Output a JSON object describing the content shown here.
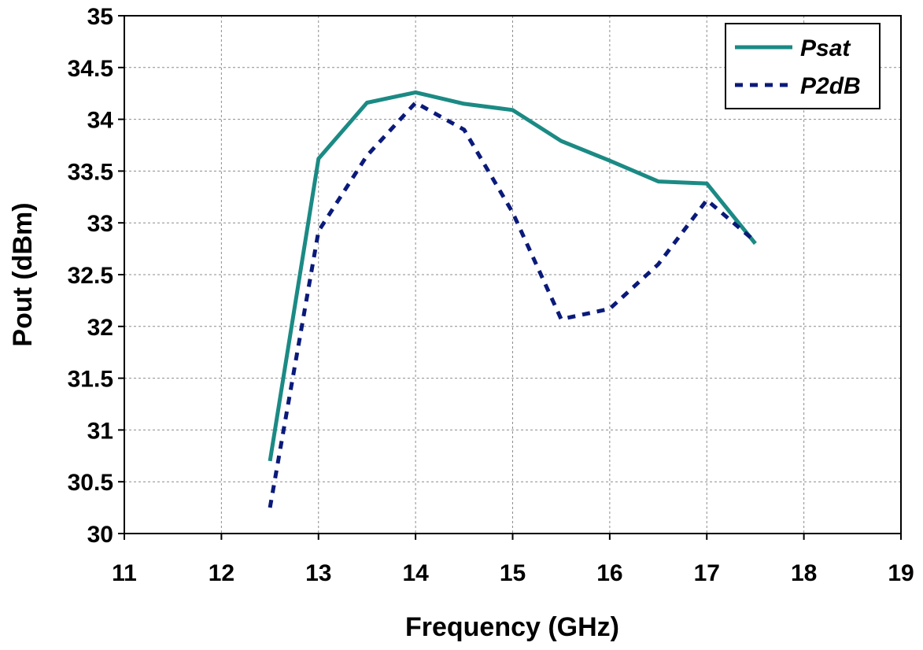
{
  "chart_data": {
    "type": "line",
    "title": "",
    "xlabel": "Frequency (GHz)",
    "ylabel": "Pout (dBm)",
    "xlim": [
      11,
      19
    ],
    "ylim": [
      30,
      35
    ],
    "xticks": [
      "11",
      "12",
      "13",
      "14",
      "15",
      "16",
      "17",
      "18",
      "19"
    ],
    "yticks": [
      "30",
      "30.5",
      "31",
      "31.5",
      "32",
      "32.5",
      "33",
      "33.5",
      "34",
      "34.5",
      "35"
    ],
    "grid": true,
    "legend_position": "top-right",
    "series": [
      {
        "name": "Psat",
        "color": "#1b8a84",
        "style": "solid",
        "x": [
          12.5,
          13,
          13.5,
          14,
          14.5,
          15,
          15.5,
          16,
          16.5,
          17,
          17.5
        ],
        "y": [
          30.7,
          33.62,
          34.16,
          34.26,
          34.15,
          34.09,
          33.79,
          33.6,
          33.4,
          33.38,
          32.8
        ]
      },
      {
        "name": "P2dB",
        "color": "#0a1a7a",
        "style": "dashed",
        "x": [
          12.5,
          13,
          13.5,
          14,
          14.5,
          15,
          15.5,
          16,
          16.5,
          17,
          17.5
        ],
        "y": [
          30.25,
          32.92,
          33.65,
          34.16,
          33.9,
          33.1,
          32.07,
          32.17,
          32.6,
          33.22,
          32.82
        ]
      }
    ]
  }
}
